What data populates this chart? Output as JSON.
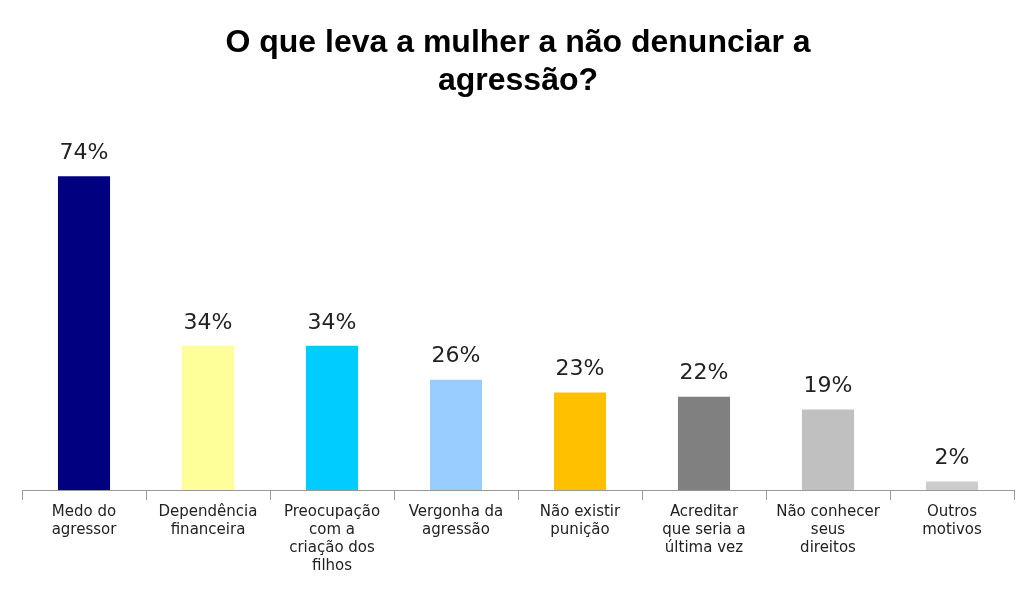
{
  "chart_data": {
    "type": "bar",
    "title": "O que leva a mulher a não denunciar a agressão?",
    "categories": [
      "Medo do agressor",
      "Dependência financeira",
      "Preocupação com a criação dos filhos",
      "Vergonha da agressão",
      "Não existir punição",
      "Acreditar que seria a última vez",
      "Não conhecer seus direitos",
      "Outros motivos"
    ],
    "values": [
      74,
      34,
      34,
      26,
      23,
      22,
      19,
      2
    ],
    "colors": [
      "#000080",
      "#ffff99",
      "#00ccff",
      "#99ccff",
      "#ffc000",
      "#808080",
      "#c0c0c0",
      "#cccccc"
    ],
    "value_labels": [
      "74%",
      "34%",
      "34%",
      "26%",
      "23%",
      "22%",
      "19%",
      "2%"
    ],
    "data_labels": true,
    "grid": false,
    "legend": false
  }
}
